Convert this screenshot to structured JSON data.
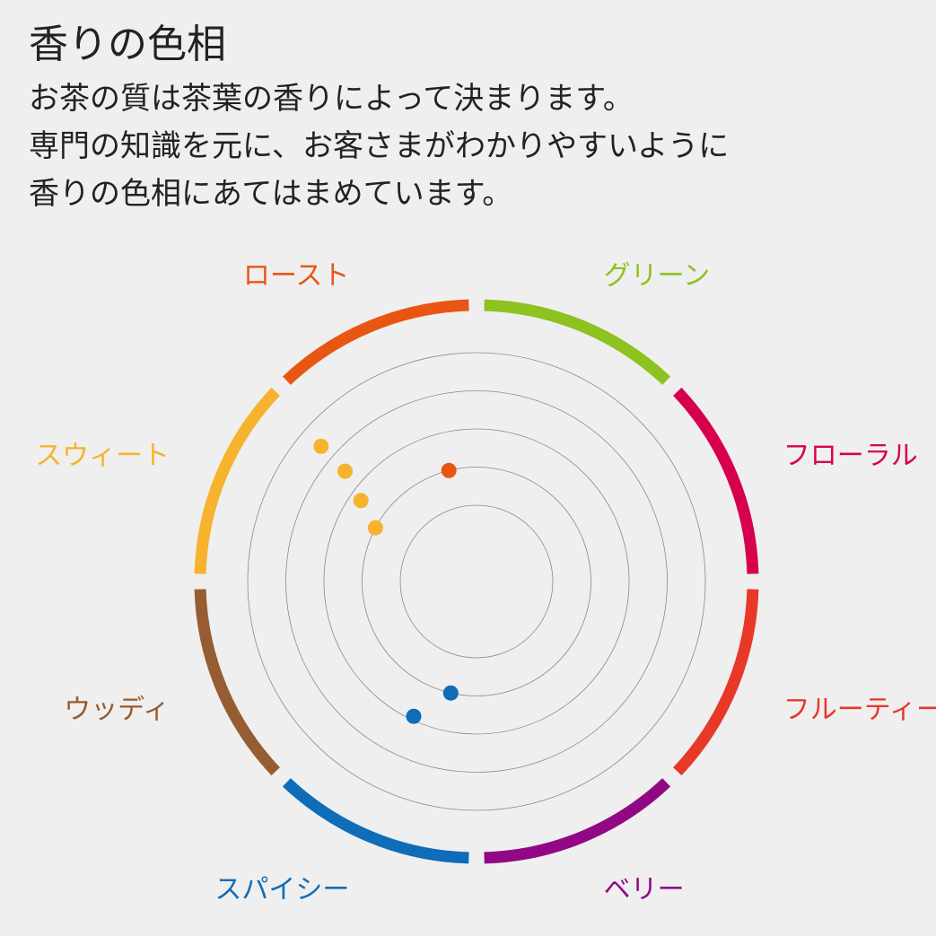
{
  "title": "香りの色相",
  "description": [
    "お茶の質は茶葉の香りによって決まります。",
    "専門の知識を元に、お客さまがわかりやすいように",
    "香りの色相にあてはまめています。"
  ],
  "chart_data": {
    "type": "radar",
    "ring_count": 5,
    "categories": [
      {
        "name": "グリーン",
        "color": "#8dc21f"
      },
      {
        "name": "フローラル",
        "color": "#d7004f"
      },
      {
        "name": "フルーティー",
        "color": "#e83828"
      },
      {
        "name": "ベリー",
        "color": "#920783"
      },
      {
        "name": "スパイシー",
        "color": "#0e6cb8"
      },
      {
        "name": "ウッディ",
        "color": "#955d31"
      },
      {
        "name": "スウィート",
        "color": "#f7b32d"
      },
      {
        "name": "ロースト",
        "color": "#e95513"
      }
    ],
    "points": [
      {
        "category": "ロースト",
        "angle_deg": 346,
        "level": 2.0
      },
      {
        "category": "スウィート",
        "angle_deg": 298,
        "level": 2.0
      },
      {
        "category": "スウィート",
        "angle_deg": 305,
        "level": 2.7
      },
      {
        "category": "スウィート",
        "angle_deg": 310,
        "level": 3.5
      },
      {
        "category": "スウィート",
        "angle_deg": 311,
        "level": 4.4
      },
      {
        "category": "スパイシー",
        "angle_deg": 193,
        "level": 2.0
      },
      {
        "category": "スパイシー",
        "angle_deg": 205,
        "level": 2.9
      }
    ]
  }
}
